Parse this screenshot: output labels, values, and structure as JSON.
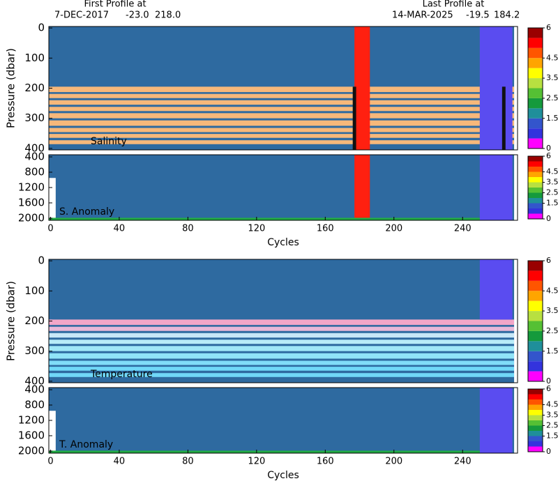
{
  "header": {
    "left_title": "First Profile at",
    "left_date": "7-DEC-2017",
    "left_lat": "-23.0",
    "left_lon": "218.0",
    "right_title": "Last Profile at",
    "right_date": "14-MAR-2025",
    "right_lat": "-19.5",
    "right_lon": "184.2"
  },
  "colorbar": {
    "lim": [
      0,
      6
    ],
    "colors": [
      "#ff00ff",
      "#3333dd",
      "#3355cc",
      "#1f8f9a",
      "#159a3c",
      "#55c034",
      "#b8e040",
      "#ffff00",
      "#ffa500",
      "#ff5500",
      "#ff0000",
      "#990000"
    ],
    "ticks": [
      0,
      1.5,
      2.5,
      3.5,
      4.5,
      6
    ]
  },
  "chart_data": [
    {
      "type": "heatmap",
      "label": "Salinity",
      "ylabel": "Pressure (dbar)",
      "xlim": [
        -1,
        272
      ],
      "ylim": [
        -5,
        405
      ],
      "yticks": [
        0,
        100,
        200,
        300,
        400
      ],
      "blocks": [
        {
          "x": [
            -1,
            272
          ],
          "y": [
            -5,
            405
          ],
          "color": "#2e6aa0"
        },
        {
          "x": [
            -1,
            270
          ],
          "y": [
            195,
            213
          ],
          "color": "#f7b87a"
        },
        {
          "x": [
            -1,
            270
          ],
          "y": [
            219,
            233
          ],
          "color": "#f7b87a"
        },
        {
          "x": [
            -1,
            270
          ],
          "y": [
            240,
            255
          ],
          "color": "#f7b87a"
        },
        {
          "x": [
            -1,
            270
          ],
          "y": [
            262,
            276
          ],
          "color": "#f7b87a"
        },
        {
          "x": [
            -1,
            270
          ],
          "y": [
            283,
            300
          ],
          "color": "#f7b87a"
        },
        {
          "x": [
            -1,
            270
          ],
          "y": [
            307,
            325
          ],
          "color": "#f7b87a"
        },
        {
          "x": [
            -1,
            270
          ],
          "y": [
            332,
            346
          ],
          "color": "#f7b87a"
        },
        {
          "x": [
            -1,
            270
          ],
          "y": [
            352,
            365
          ],
          "color": "#f7b87a"
        },
        {
          "x": [
            -1,
            270
          ],
          "y": [
            373,
            386
          ],
          "color": "#f7b87a"
        },
        {
          "x": [
            177,
            186
          ],
          "y": [
            -5,
            405
          ],
          "color": "#ff2010"
        },
        {
          "x": [
            250,
            269
          ],
          "y": [
            -5,
            405
          ],
          "color": "#5a4cf0"
        },
        {
          "x": [
            176,
            178
          ],
          "y": [
            195,
            405
          ],
          "color": "#111111"
        },
        {
          "x": [
            263,
            265
          ],
          "y": [
            195,
            405
          ],
          "color": "#111111"
        },
        {
          "x": [
            270,
            272
          ],
          "y": [
            -5,
            405
          ],
          "color": "#ffffff"
        }
      ]
    },
    {
      "type": "heatmap",
      "label": "S. Anomaly",
      "xlabel": "Cycles",
      "xlim": [
        -1,
        272
      ],
      "ylim": [
        345,
        2055
      ],
      "yticks": [
        400,
        800,
        1200,
        1600,
        2000
      ],
      "xticks": [
        0,
        40,
        80,
        120,
        160,
        200,
        240
      ],
      "blocks": [
        {
          "x": [
            -1,
            272
          ],
          "y": [
            345,
            2055
          ],
          "color": "#2e6aa0"
        },
        {
          "x": [
            -1,
            3
          ],
          "y": [
            950,
            2055
          ],
          "color": "#ffffff"
        },
        {
          "x": [
            177,
            186
          ],
          "y": [
            345,
            2055
          ],
          "color": "#ff2010"
        },
        {
          "x": [
            250,
            269
          ],
          "y": [
            345,
            2055
          ],
          "color": "#5a4cf0"
        },
        {
          "x": [
            -1,
            250
          ],
          "y": [
            1990,
            2055
          ],
          "color": "#22aa44"
        },
        {
          "x": [
            270,
            272
          ],
          "y": [
            345,
            2055
          ],
          "color": "#ffffff"
        }
      ]
    },
    {
      "type": "heatmap",
      "label": "Temperature",
      "ylabel": "Pressure (dbar)",
      "xlim": [
        -1,
        272
      ],
      "ylim": [
        -5,
        405
      ],
      "yticks": [
        0,
        100,
        200,
        300,
        400
      ],
      "blocks": [
        {
          "x": [
            -1,
            272
          ],
          "y": [
            -5,
            405
          ],
          "color": "#2e6aa0"
        },
        {
          "x": [
            -1,
            270
          ],
          "y": [
            195,
            213
          ],
          "color": "#f2a6c8"
        },
        {
          "x": [
            -1,
            270
          ],
          "y": [
            219,
            233
          ],
          "color": "#e8b8d8"
        },
        {
          "x": [
            -1,
            270
          ],
          "y": [
            240,
            255
          ],
          "color": "#c8e8f8"
        },
        {
          "x": [
            -1,
            270
          ],
          "y": [
            262,
            276
          ],
          "color": "#b8ecf8"
        },
        {
          "x": [
            -1,
            270
          ],
          "y": [
            283,
            300
          ],
          "color": "#a0e8f8"
        },
        {
          "x": [
            -1,
            270
          ],
          "y": [
            307,
            325
          ],
          "color": "#90e4f8"
        },
        {
          "x": [
            -1,
            270
          ],
          "y": [
            332,
            346
          ],
          "color": "#80dcf8"
        },
        {
          "x": [
            -1,
            270
          ],
          "y": [
            352,
            365
          ],
          "color": "#70d8f8"
        },
        {
          "x": [
            -1,
            270
          ],
          "y": [
            373,
            386
          ],
          "color": "#70d8f8"
        },
        {
          "x": [
            250,
            269
          ],
          "y": [
            -5,
            195
          ],
          "color": "#5a4cf0"
        },
        {
          "x": [
            270,
            272
          ],
          "y": [
            -5,
            405
          ],
          "color": "#ffffff"
        }
      ]
    },
    {
      "type": "heatmap",
      "label": "T. Anomaly",
      "xlabel": "Cycles",
      "xlim": [
        -1,
        272
      ],
      "ylim": [
        345,
        2055
      ],
      "yticks": [
        400,
        800,
        1200,
        1600,
        2000
      ],
      "xticks": [
        0,
        40,
        80,
        120,
        160,
        200,
        240
      ],
      "blocks": [
        {
          "x": [
            -1,
            272
          ],
          "y": [
            345,
            2055
          ],
          "color": "#2e6aa0"
        },
        {
          "x": [
            -1,
            3
          ],
          "y": [
            950,
            2055
          ],
          "color": "#ffffff"
        },
        {
          "x": [
            250,
            269
          ],
          "y": [
            345,
            2055
          ],
          "color": "#5a4cf0"
        },
        {
          "x": [
            -1,
            250
          ],
          "y": [
            1990,
            2055
          ],
          "color": "#22aa44"
        },
        {
          "x": [
            270,
            272
          ],
          "y": [
            345,
            2055
          ],
          "color": "#ffffff"
        }
      ]
    }
  ]
}
